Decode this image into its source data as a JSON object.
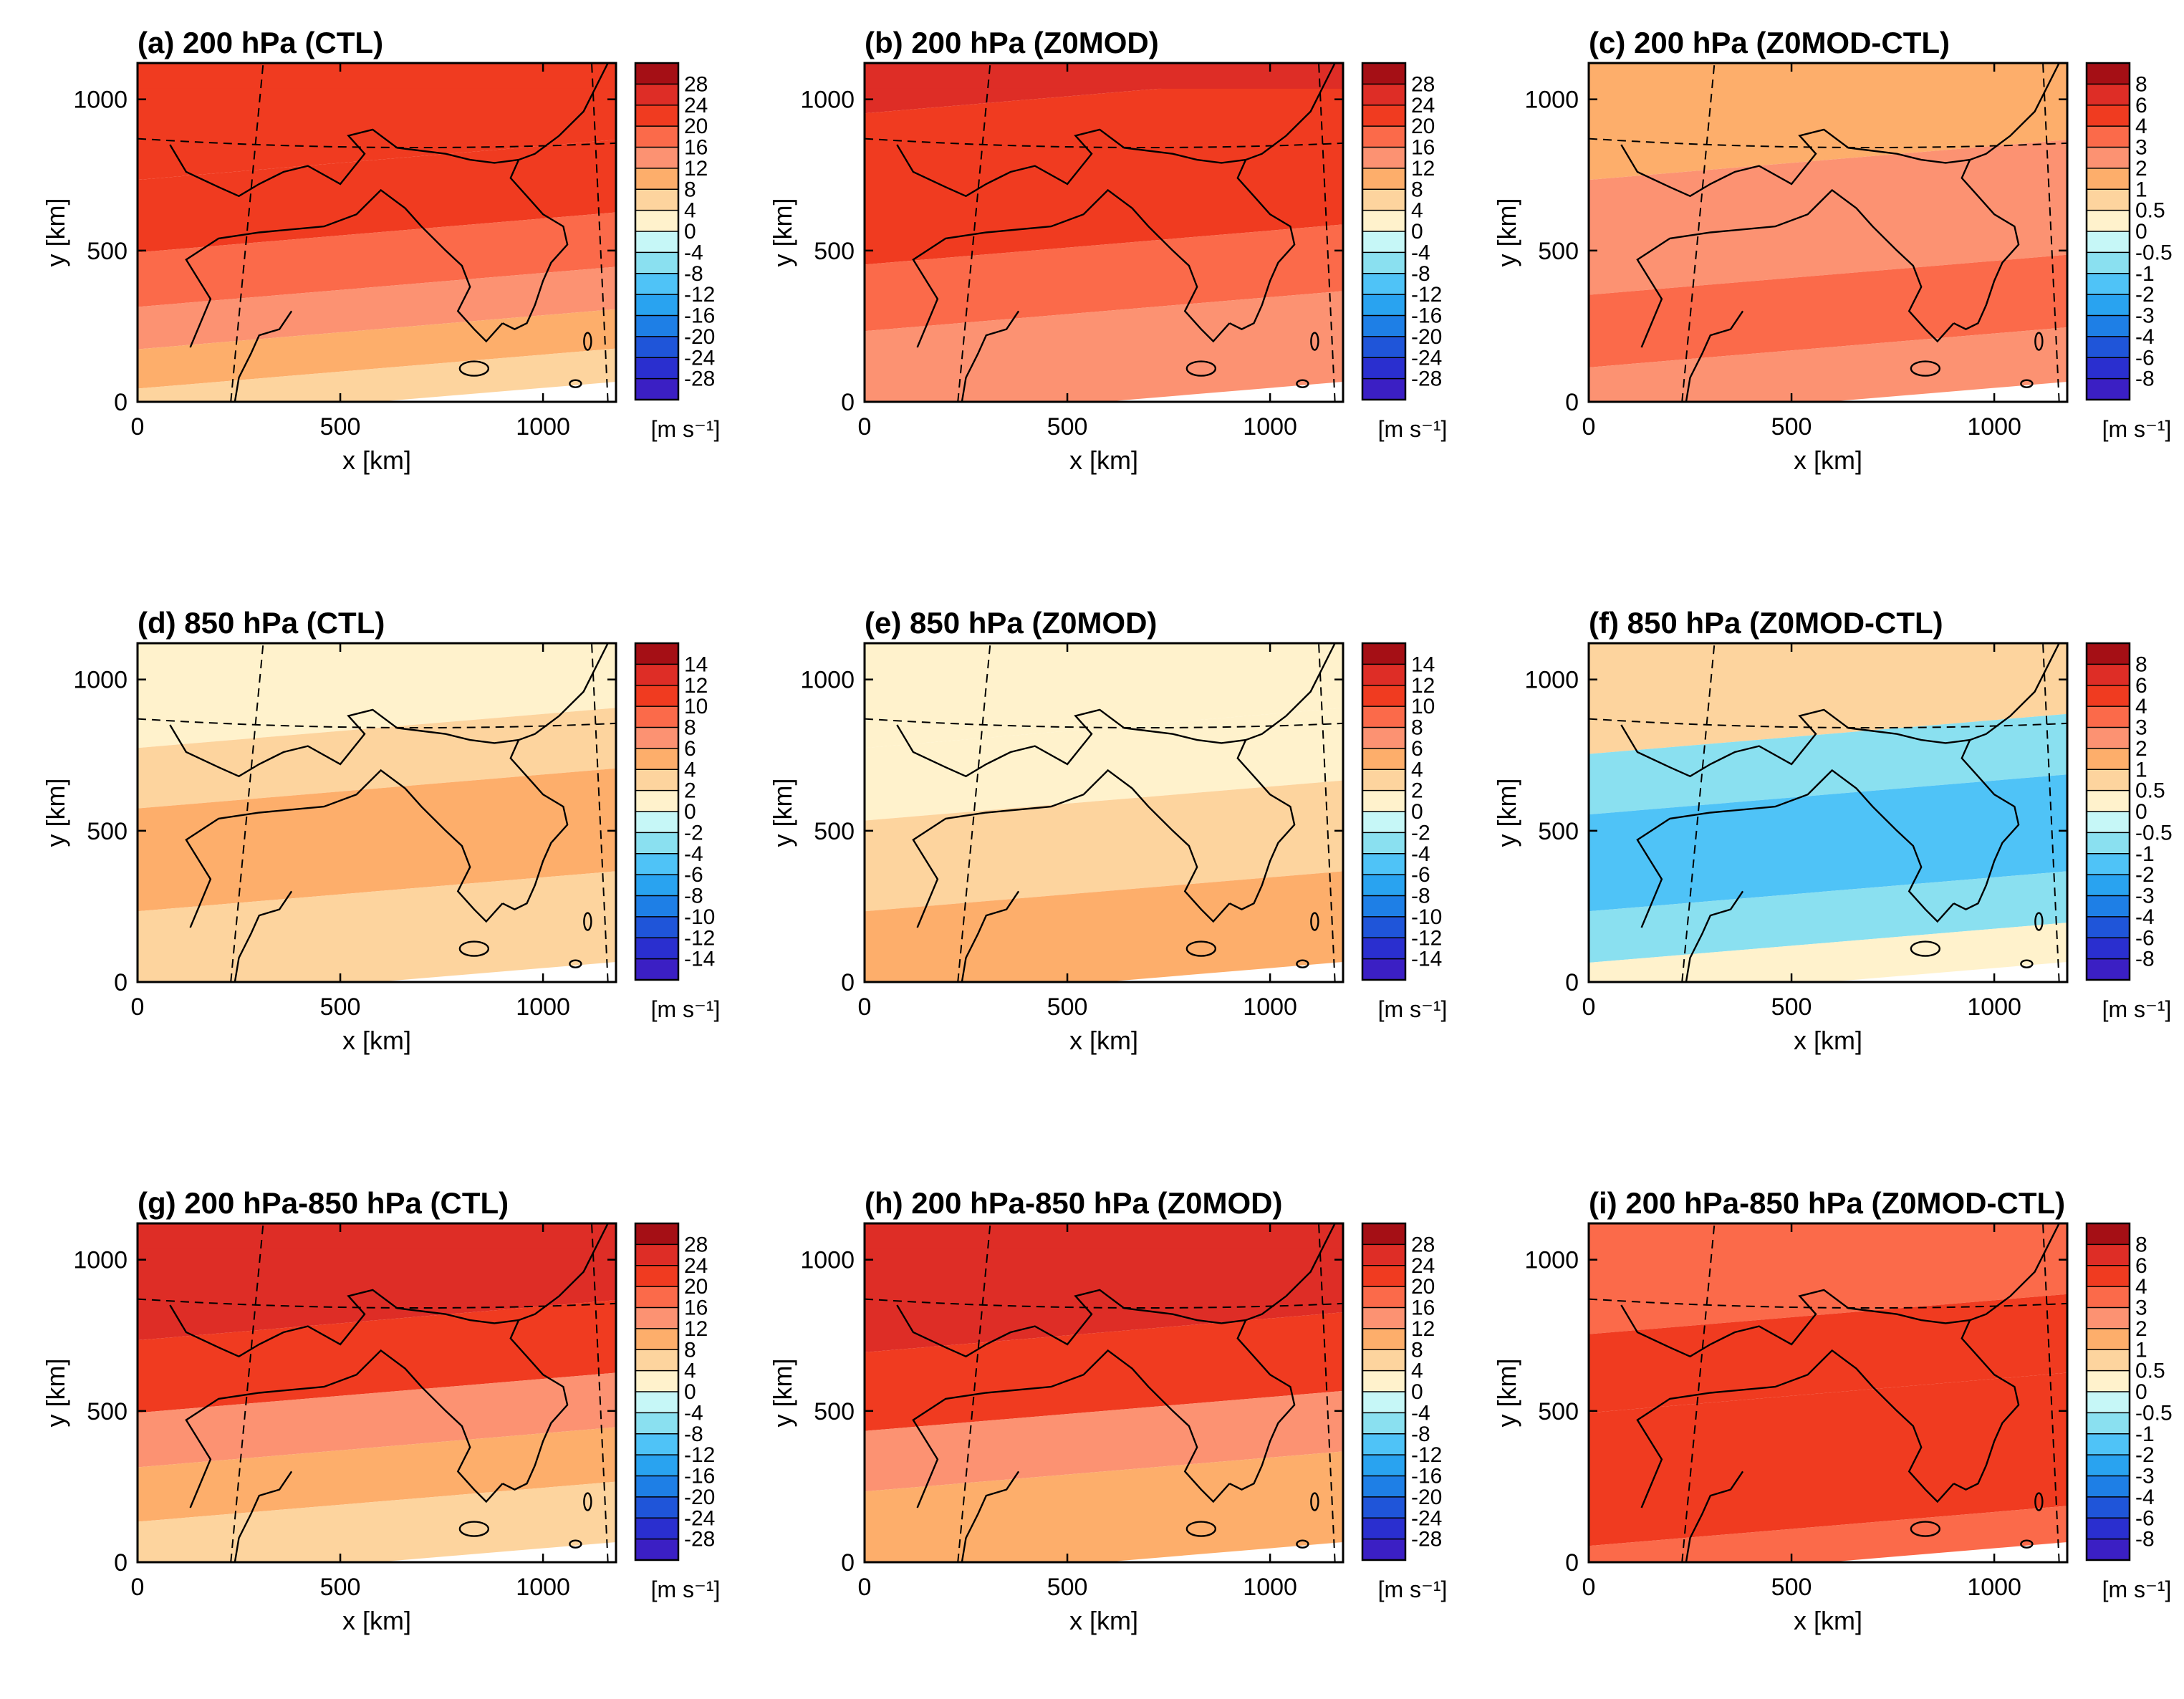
{
  "figure": {
    "panels": [
      {
        "id": "a",
        "title": "(a) 200 hPa (CTL)",
        "scale": "s200"
      },
      {
        "id": "b",
        "title": "(b) 200 hPa (Z0MOD)",
        "scale": "s200"
      },
      {
        "id": "c",
        "title": "(c) 200 hPa (Z0MOD-CTL)",
        "scale": "diff"
      },
      {
        "id": "d",
        "title": "(d) 850 hPa (CTL)",
        "scale": "s850"
      },
      {
        "id": "e",
        "title": "(e) 850 hPa (Z0MOD)",
        "scale": "s850"
      },
      {
        "id": "f",
        "title": "(f) 850 hPa (Z0MOD-CTL)",
        "scale": "diff"
      },
      {
        "id": "g",
        "title": "(g) 200 hPa-850 hPa (CTL)",
        "scale": "s200"
      },
      {
        "id": "h",
        "title": "(h) 200 hPa-850 hPa (Z0MOD)",
        "scale": "s200"
      },
      {
        "id": "i",
        "title": "(i) 200 hPa-850 hPa (Z0MOD-CTL)",
        "scale": "diff"
      }
    ],
    "colorbar_unit": "[m s⁻¹]"
  },
  "chart_data": {
    "type": "heatmap",
    "xlabel": "x [km]",
    "ylabel": "y [km]",
    "xlim": [
      0,
      1180
    ],
    "ylim": [
      0,
      1120
    ],
    "x_ticks": [
      "0",
      "500",
      "1000"
    ],
    "y_ticks": [
      "0",
      "500",
      "1000"
    ],
    "scales": {
      "s200": {
        "levels": [
          "28",
          "24",
          "20",
          "16",
          "12",
          "8",
          "4",
          "0",
          "-4",
          "-8",
          "-12",
          "-16",
          "-20",
          "-24",
          "-28"
        ],
        "colors": [
          "#a50f15",
          "#de2d26",
          "#f03b20",
          "#fb6a4a",
          "#fc9272",
          "#fdae6b",
          "#fdd49e",
          "#fff2cc",
          "#c6f7f7",
          "#8ae0f0",
          "#4fc3f7",
          "#29a3f0",
          "#1e7fe6",
          "#1f55d9",
          "#2a2fcf",
          "#3b1fc4"
        ]
      },
      "s850": {
        "levels": [
          "14",
          "12",
          "10",
          "8",
          "6",
          "4",
          "2",
          "0",
          "-2",
          "-4",
          "-6",
          "-8",
          "-10",
          "-12",
          "-14"
        ],
        "colors": [
          "#a50f15",
          "#de2d26",
          "#f03b20",
          "#fb6a4a",
          "#fc9272",
          "#fdae6b",
          "#fdd49e",
          "#fff2cc",
          "#c6f7f7",
          "#8ae0f0",
          "#4fc3f7",
          "#29a3f0",
          "#1e7fe6",
          "#1f55d9",
          "#2a2fcf",
          "#3b1fc4"
        ]
      },
      "diff": {
        "levels": [
          "8",
          "6",
          "4",
          "3",
          "2",
          "1",
          "0.5",
          "0",
          "-0.5",
          "-1",
          "-2",
          "-3",
          "-4",
          "-6",
          "-8"
        ],
        "colors": [
          "#a50f15",
          "#de2d26",
          "#f03b20",
          "#fb6a4a",
          "#fc9272",
          "#fdae6b",
          "#fdd49e",
          "#fff2cc",
          "#c6f7f7",
          "#8ae0f0",
          "#4fc3f7",
          "#29a3f0",
          "#1e7fe6",
          "#1f55d9",
          "#2a2fcf",
          "#3b1fc4"
        ]
      }
    },
    "panel_fields": {
      "a": [
        {
          "range": [
            800,
            1120
          ],
          "value": 23
        },
        {
          "range": [
            560,
            800
          ],
          "value": 21
        },
        {
          "range": [
            380,
            560
          ],
          "value": 17
        },
        {
          "range": [
            240,
            380
          ],
          "value": 13
        },
        {
          "range": [
            110,
            240
          ],
          "value": 9
        },
        {
          "range": [
            0,
            110
          ],
          "value": 5
        }
      ],
      "b": [
        {
          "range": [
            1020,
            1120
          ],
          "value": 26
        },
        {
          "range": [
            520,
            1020
          ],
          "value": 23
        },
        {
          "range": [
            300,
            520
          ],
          "value": 17
        },
        {
          "range": [
            0,
            300
          ],
          "value": 13
        }
      ],
      "c": [
        {
          "range": [
            800,
            1120
          ],
          "value": 1.5
        },
        {
          "range": [
            420,
            800
          ],
          "value": 2.5
        },
        {
          "range": [
            180,
            420
          ],
          "value": 3.5
        },
        {
          "range": [
            0,
            180
          ],
          "value": 2.5
        }
      ],
      "d": [
        {
          "range": [
            840,
            1120
          ],
          "value": 1
        },
        {
          "range": [
            640,
            840
          ],
          "value": 3
        },
        {
          "range": [
            300,
            640
          ],
          "value": 5
        },
        {
          "range": [
            0,
            300
          ],
          "value": 3
        }
      ],
      "e": [
        {
          "range": [
            840,
            1120
          ],
          "value": 1
        },
        {
          "range": [
            600,
            840
          ],
          "value": 1
        },
        {
          "range": [
            300,
            600
          ],
          "value": 3
        },
        {
          "range": [
            0,
            300
          ],
          "value": 5
        }
      ],
      "f": [
        {
          "range": [
            820,
            1120
          ],
          "value": 0.7
        },
        {
          "range": [
            620,
            820
          ],
          "value": -0.7
        },
        {
          "range": [
            300,
            620
          ],
          "value": -1.5
        },
        {
          "range": [
            130,
            300
          ],
          "value": -0.7
        },
        {
          "range": [
            0,
            130
          ],
          "value": 0.2
        }
      ],
      "g": [
        {
          "range": [
            800,
            1120
          ],
          "value": 25
        },
        {
          "range": [
            560,
            800
          ],
          "value": 21
        },
        {
          "range": [
            380,
            560
          ],
          "value": 13
        },
        {
          "range": [
            200,
            380
          ],
          "value": 9
        },
        {
          "range": [
            0,
            200
          ],
          "value": 5
        }
      ],
      "h": [
        {
          "range": [
            760,
            1120
          ],
          "value": 25
        },
        {
          "range": [
            500,
            760
          ],
          "value": 21
        },
        {
          "range": [
            300,
            500
          ],
          "value": 13
        },
        {
          "range": [
            0,
            300
          ],
          "value": 9
        }
      ],
      "i": [
        {
          "range": [
            820,
            1120
          ],
          "value": 3.5
        },
        {
          "range": [
            560,
            820
          ],
          "value": 4.5
        },
        {
          "range": [
            120,
            560
          ],
          "value": 5
        },
        {
          "range": [
            0,
            120
          ],
          "value": 3.5
        }
      ]
    }
  }
}
